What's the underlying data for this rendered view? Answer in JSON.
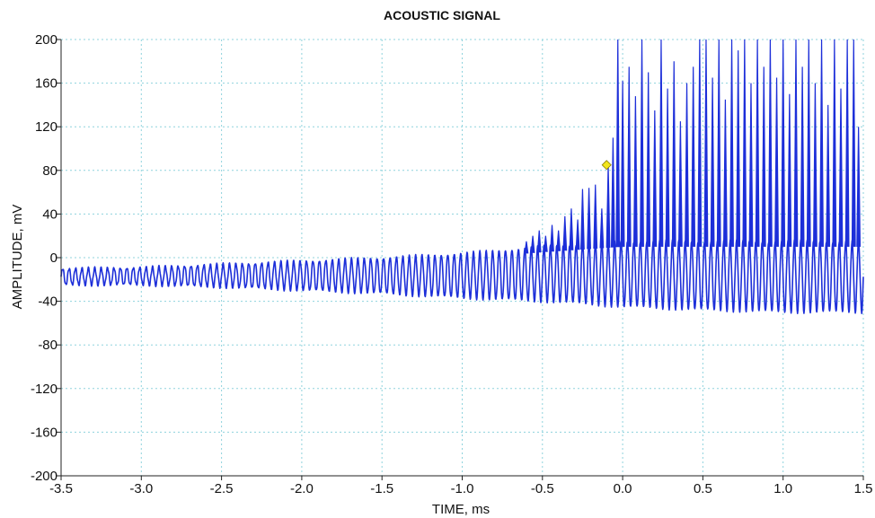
{
  "chart_data": {
    "type": "line",
    "title": "ACOUSTIC SIGNAL",
    "xlabel": "TIME, ms",
    "ylabel": "AMPLITUDE, mV",
    "xlim": [
      -3.5,
      1.5
    ],
    "ylim": [
      -200,
      200
    ],
    "xticks": [
      -3.5,
      -3.0,
      -2.5,
      -2.0,
      -1.5,
      -1.0,
      -0.5,
      0.0,
      0.5,
      1.0,
      1.5
    ],
    "xtick_labels": [
      "-3.5",
      "-3.0",
      "-2.5",
      "-2.0",
      "-1.5",
      "-1.0",
      "-0.5",
      "0.0",
      "0.5",
      "1.0",
      "1.5"
    ],
    "yticks": [
      -200,
      -160,
      -120,
      -80,
      -40,
      0,
      40,
      80,
      120,
      160,
      200
    ],
    "ytick_labels": [
      "-200",
      "-160",
      "-120",
      "-80",
      "-40",
      "0",
      "40",
      "80",
      "120",
      "160",
      "200"
    ],
    "grid": true,
    "series": [
      {
        "color": "#1d2fd9",
        "style": "oscillation",
        "envelope": [
          {
            "x": -3.5,
            "min": -25,
            "max": -10
          },
          {
            "x": -3.0,
            "min": -25,
            "max": -9
          },
          {
            "x": -2.5,
            "min": -27,
            "max": -6
          },
          {
            "x": -2.0,
            "min": -30,
            "max": -3
          },
          {
            "x": -1.5,
            "min": -33,
            "max": 0
          },
          {
            "x": -1.0,
            "min": -37,
            "max": 4
          },
          {
            "x": -0.5,
            "min": -40,
            "max": 10
          },
          {
            "x": 0.0,
            "min": -45,
            "max": 15
          },
          {
            "x": 0.5,
            "min": -48,
            "max": 15
          },
          {
            "x": 1.0,
            "min": -50,
            "max": 15
          },
          {
            "x": 1.5,
            "min": -50,
            "max": 15
          }
        ],
        "spikes": [
          {
            "x": -0.6,
            "y": 15
          },
          {
            "x": -0.56,
            "y": 20
          },
          {
            "x": -0.52,
            "y": 25
          },
          {
            "x": -0.48,
            "y": 20
          },
          {
            "x": -0.44,
            "y": 30
          },
          {
            "x": -0.4,
            "y": 25
          },
          {
            "x": -0.36,
            "y": 38
          },
          {
            "x": -0.32,
            "y": 45
          },
          {
            "x": -0.28,
            "y": 35
          },
          {
            "x": -0.25,
            "y": 63
          },
          {
            "x": -0.21,
            "y": 64
          },
          {
            "x": -0.17,
            "y": 67
          },
          {
            "x": -0.13,
            "y": 45
          },
          {
            "x": -0.09,
            "y": 85
          },
          {
            "x": -0.06,
            "y": 110
          },
          {
            "x": -0.03,
            "y": 200
          },
          {
            "x": 0.0,
            "y": 162
          },
          {
            "x": 0.04,
            "y": 175
          },
          {
            "x": 0.08,
            "y": 148
          },
          {
            "x": 0.12,
            "y": 200
          },
          {
            "x": 0.16,
            "y": 170
          },
          {
            "x": 0.2,
            "y": 135
          },
          {
            "x": 0.24,
            "y": 200
          },
          {
            "x": 0.28,
            "y": 155
          },
          {
            "x": 0.32,
            "y": 180
          },
          {
            "x": 0.36,
            "y": 125
          },
          {
            "x": 0.4,
            "y": 160
          },
          {
            "x": 0.44,
            "y": 175
          },
          {
            "x": 0.48,
            "y": 200
          },
          {
            "x": 0.52,
            "y": 200
          },
          {
            "x": 0.56,
            "y": 165
          },
          {
            "x": 0.6,
            "y": 200
          },
          {
            "x": 0.64,
            "y": 145
          },
          {
            "x": 0.68,
            "y": 200
          },
          {
            "x": 0.72,
            "y": 190
          },
          {
            "x": 0.76,
            "y": 200
          },
          {
            "x": 0.8,
            "y": 160
          },
          {
            "x": 0.84,
            "y": 200
          },
          {
            "x": 0.88,
            "y": 175
          },
          {
            "x": 0.92,
            "y": 200
          },
          {
            "x": 0.96,
            "y": 165
          },
          {
            "x": 1.0,
            "y": 200
          },
          {
            "x": 1.04,
            "y": 150
          },
          {
            "x": 1.08,
            "y": 200
          },
          {
            "x": 1.12,
            "y": 175
          },
          {
            "x": 1.16,
            "y": 200
          },
          {
            "x": 1.2,
            "y": 160
          },
          {
            "x": 1.24,
            "y": 200
          },
          {
            "x": 1.28,
            "y": 140
          },
          {
            "x": 1.32,
            "y": 200
          },
          {
            "x": 1.36,
            "y": 155
          },
          {
            "x": 1.4,
            "y": 200
          },
          {
            "x": 1.44,
            "y": 200
          },
          {
            "x": 1.47,
            "y": 120
          }
        ]
      }
    ],
    "marker": {
      "x": -0.1,
      "y": 85,
      "shape": "diamond",
      "color": "#f2e61c"
    }
  }
}
